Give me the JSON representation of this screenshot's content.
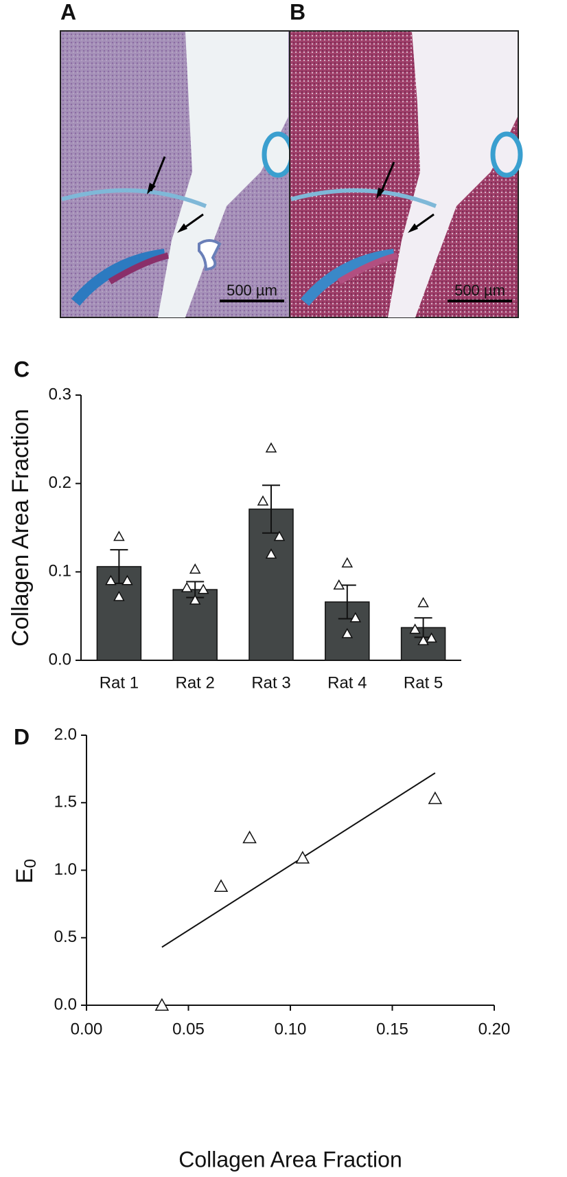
{
  "panels": [
    {
      "label": "A",
      "scale_bar": "500 µm"
    },
    {
      "label": "B",
      "scale_bar": "500 µm"
    }
  ],
  "chart_data": [
    {
      "type": "bar",
      "panel_label": "C",
      "ylabel": "Collagen Area Fraction",
      "categories": [
        "Rat 1",
        "Rat 2",
        "Rat 3",
        "Rat 4",
        "Rat 5"
      ],
      "values": [
        0.106,
        0.08,
        0.171,
        0.066,
        0.037
      ],
      "errors": [
        0.019,
        0.009,
        0.027,
        0.019,
        0.011
      ],
      "points": [
        [
          0.14,
          0.09,
          0.09,
          0.072
        ],
        [
          0.103,
          0.082,
          0.08,
          0.068
        ],
        [
          0.24,
          0.18,
          0.14,
          0.12
        ],
        [
          0.11,
          0.085,
          0.048,
          0.03
        ],
        [
          0.065,
          0.035,
          0.025,
          0.022
        ]
      ],
      "color": "#434747",
      "ylim": [
        0,
        0.3
      ],
      "yticks": [
        {
          "value": 0,
          "label": "0.0"
        },
        {
          "value": 0.1,
          "label": "0.1"
        },
        {
          "value": 0.2,
          "label": "0.2"
        },
        {
          "value": 0.3,
          "label": "0.3"
        }
      ]
    },
    {
      "type": "scatter",
      "panel_label": "D",
      "xlabel": "Collagen Area Fraction",
      "ylabel": {
        "base": "E",
        "subscript": "0"
      },
      "x": [
        0.037,
        0.066,
        0.08,
        0.106,
        0.171
      ],
      "y": [
        0.0,
        0.88,
        1.24,
        1.09,
        1.53
      ],
      "fit": {
        "x": [
          0.037,
          0.171
        ],
        "y": [
          0.43,
          1.72
        ]
      },
      "xlim": [
        0,
        0.2
      ],
      "ylim": [
        0,
        2.0
      ],
      "xticks": [
        {
          "value": 0,
          "label": "0.00"
        },
        {
          "value": 0.05,
          "label": "0.05"
        },
        {
          "value": 0.1,
          "label": "0.10"
        },
        {
          "value": 0.15,
          "label": "0.15"
        },
        {
          "value": 0.2,
          "label": "0.20"
        }
      ],
      "yticks": [
        {
          "value": 0,
          "label": "0.0"
        },
        {
          "value": 0.5,
          "label": "0.5"
        },
        {
          "value": 1.0,
          "label": "1.0"
        },
        {
          "value": 1.5,
          "label": "1.5"
        },
        {
          "value": 2.0,
          "label": "2.0"
        }
      ]
    }
  ]
}
